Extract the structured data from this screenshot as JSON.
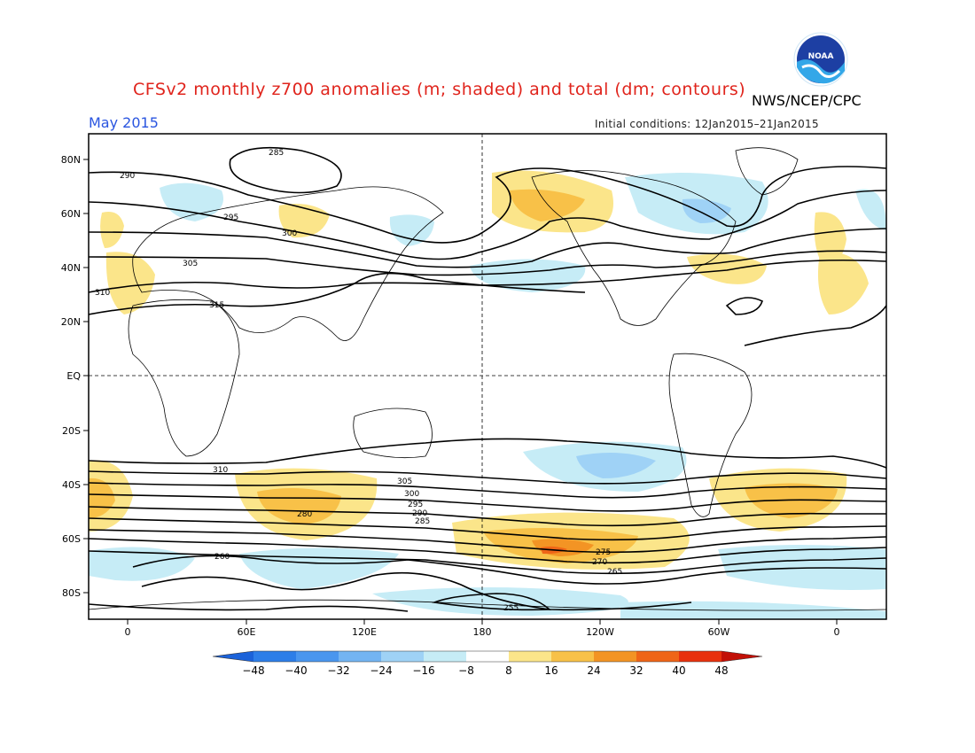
{
  "header": {
    "title": "CFSv2 monthly z700 anomalies (m; shaded) and total (dm; contours)",
    "agency": "NWS/NCEP/CPC",
    "month": "May 2015",
    "initial_conditions": "Initial conditions: 12Jan2015–21Jan2015",
    "logo_text": "NOAA"
  },
  "map": {
    "lat_labels": [
      "80N",
      "60N",
      "40N",
      "20N",
      "EQ",
      "20S",
      "40S",
      "60S",
      "80S"
    ],
    "lon_labels": [
      "0",
      "60E",
      "120E",
      "180",
      "120W",
      "60W",
      "0"
    ],
    "contour_labels": [
      "285",
      "290",
      "295",
      "300",
      "305",
      "310",
      "315",
      "310",
      "305",
      "300",
      "295",
      "290",
      "285",
      "280",
      "275",
      "270",
      "265",
      "260",
      "255"
    ]
  },
  "colorbar": {
    "ticks": [
      "-48",
      "-40",
      "-32",
      "-24",
      "-16",
      "-8",
      "8",
      "16",
      "24",
      "32",
      "40",
      "48"
    ],
    "colors": [
      "#1b62d9",
      "#2d7ee8",
      "#4a96ee",
      "#73b4f2",
      "#9fd2f6",
      "#c6ecf6",
      "#ffffff",
      "#fbe58a",
      "#f8c148",
      "#f39424",
      "#ef6517",
      "#e8310d",
      "#c21007"
    ]
  }
}
